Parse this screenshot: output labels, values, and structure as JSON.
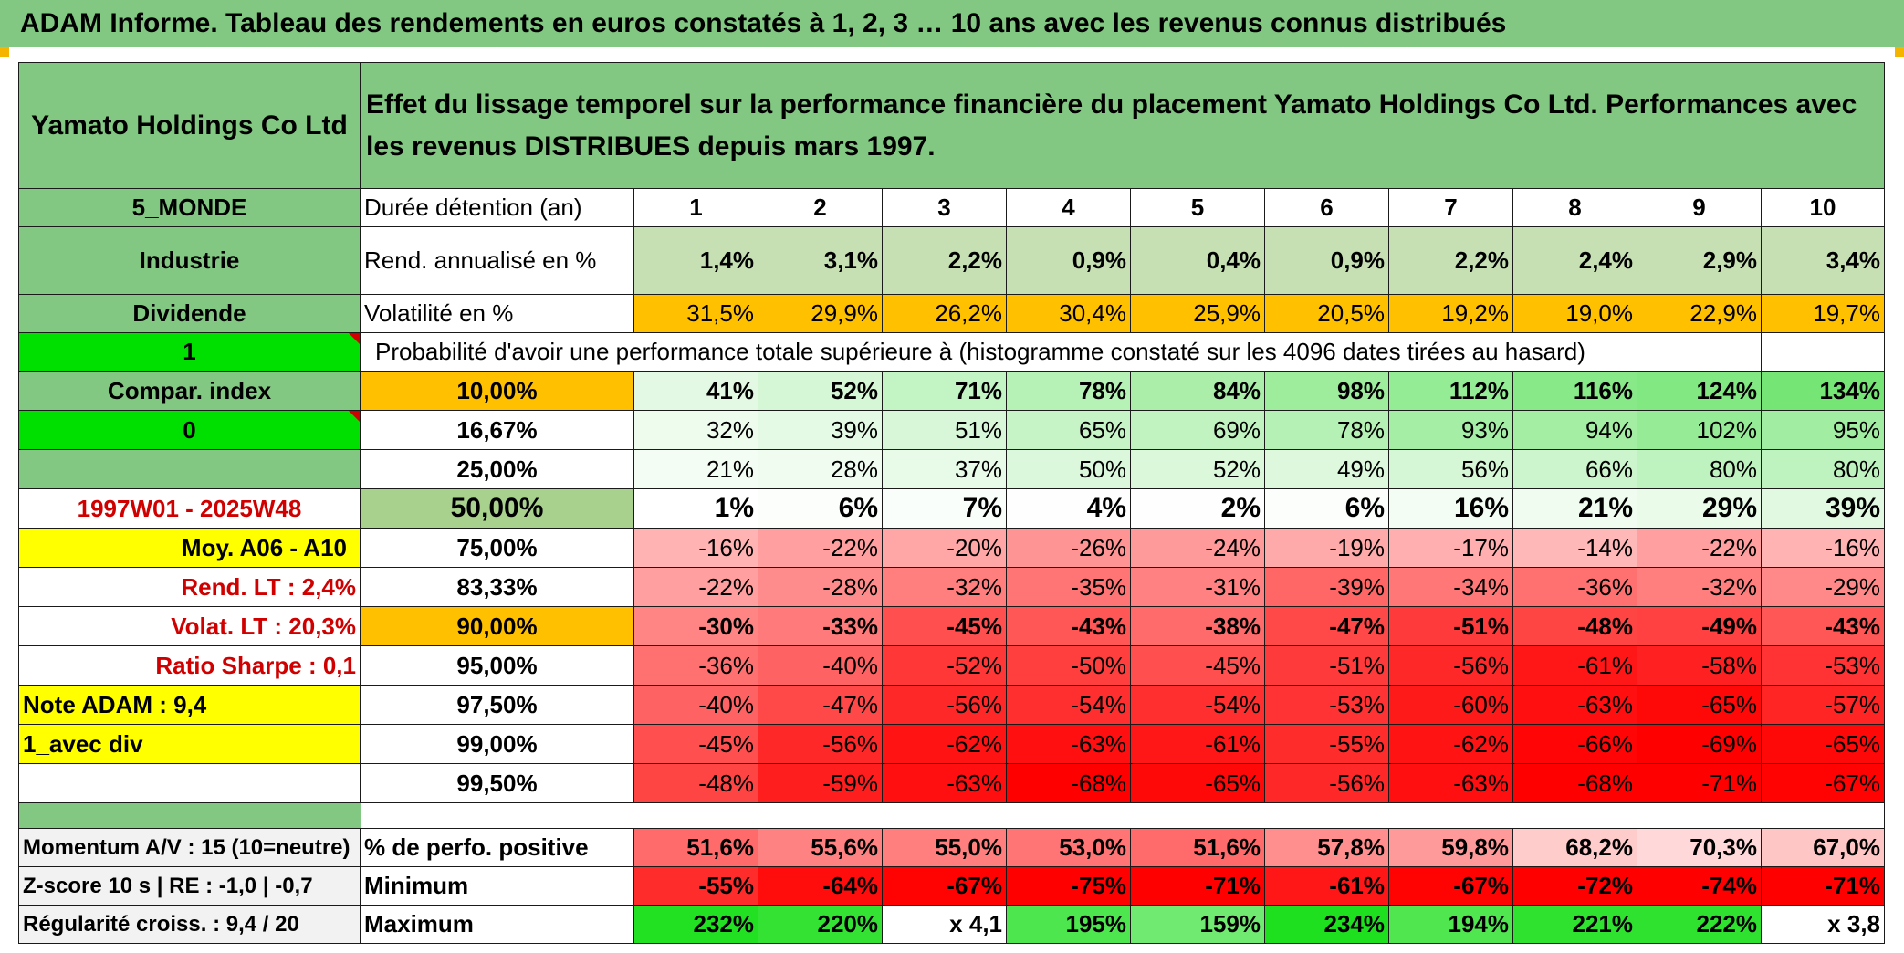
{
  "banner": "ADAM Informe. Tableau des rendements en euros constatés à 1, 2, 3 … 10 ans avec les revenus connus distribués",
  "company": "Yamato Holdings Co Ltd",
  "header_text": "Effet du lissage temporel sur la performance financière du placement Yamato Holdings Co Ltd. Performances avec les revenus DISTRIBUES depuis mars 1997.",
  "sidebar": {
    "zone": "5_MONDE",
    "sector": "Industrie",
    "dividend": "Dividende",
    "input1": "1",
    "compar": "Compar. index",
    "input0": "0",
    "period": "1997W01 - 2025W48",
    "moy": "Moy. A06 - A10",
    "rend_lt": "Rend. LT :   2,4%",
    "volat_lt": "Volat. LT :   20,3%",
    "sharpe": "Ratio Sharpe :    0,1",
    "note": "Note ADAM : 9,4",
    "avec_div": "1_avec div",
    "momentum": "Momentum A/V : 15 (10=neutre)",
    "zscore": "Z-score 10 s | RE : -1,0 | -0,7",
    "regularite": "Régularité croiss. : 9,4 / 20"
  },
  "labels": {
    "duree": "Durée détention (an)",
    "rend": "Rend. annualisé en %",
    "volat": "Volatilité en %",
    "proba": "Probabilité d'avoir une performance totale supérieure à (histogramme constaté sur les 4096 dates tirées au hasard)",
    "pos": "% de perfo. positive",
    "min": "Minimum",
    "max": "Maximum"
  },
  "years": [
    "1",
    "2",
    "3",
    "4",
    "5",
    "6",
    "7",
    "8",
    "9",
    "10"
  ],
  "rend": [
    "1,4%",
    "3,1%",
    "2,2%",
    "0,9%",
    "0,4%",
    "0,9%",
    "2,2%",
    "2,4%",
    "2,9%",
    "3,4%"
  ],
  "volat": [
    "31,5%",
    "29,9%",
    "26,2%",
    "30,4%",
    "25,9%",
    "20,5%",
    "19,2%",
    "19,0%",
    "22,9%",
    "19,7%"
  ],
  "volat_colors": [
    "#ffc000",
    "#ffc000",
    "#ffc000",
    "#ffc000",
    "#ffc000",
    "#ffc000",
    "#ffc000",
    "#ffc000",
    "#ffc000",
    "#ffc000"
  ],
  "prob_rows": [
    {
      "pct": "10,00%",
      "vals": [
        "41%",
        "52%",
        "71%",
        "78%",
        "84%",
        "98%",
        "112%",
        "116%",
        "124%",
        "134%"
      ],
      "colors": [
        "#e3f9e3",
        "#d5f7d5",
        "#c3f4c3",
        "#b6f1b6",
        "#aaeeaa",
        "#9ded9d",
        "#94ec94",
        "#88e988",
        "#82e882",
        "#75e675"
      ]
    },
    {
      "pct": "16,67%",
      "vals": [
        "32%",
        "39%",
        "51%",
        "65%",
        "69%",
        "78%",
        "93%",
        "94%",
        "102%",
        "95%"
      ],
      "colors": [
        "#eefcee",
        "#e5fae5",
        "#d8f7d8",
        "#c7f4c7",
        "#c0f3c0",
        "#b5f0b5",
        "#a5ee a5",
        "#a3ee a3",
        "#96ec96",
        "#a1ed a1"
      ]
    },
    {
      "pct": "25,00%",
      "vals": [
        "21%",
        "28%",
        "37%",
        "50%",
        "52%",
        "49%",
        "56%",
        "66%",
        "80%",
        "80%"
      ],
      "colors": [
        "#f3fdf3",
        "#effcef",
        "#e8fae8",
        "#dcf8dc",
        "#dbf8db",
        "#ddf8dd",
        "#d6f7d6",
        "#cdf5cd",
        "#bef2be",
        "#bef2be"
      ]
    },
    {
      "pct": "50,00%",
      "vals": [
        "1%",
        "6%",
        "7%",
        "4%",
        "2%",
        "6%",
        "16%",
        "21%",
        "29%",
        "39%"
      ],
      "colors": [
        "#ffffff",
        "#fbfefb",
        "#fafefa",
        "#fdfefd",
        "#fefefe",
        "#fbfefb",
        "#f4fdf4",
        "#f0fcf0",
        "#eafbea",
        "#e1f9e1"
      ]
    },
    {
      "pct": "75,00%",
      "vals": [
        "-16%",
        "-22%",
        "-20%",
        "-26%",
        "-24%",
        "-19%",
        "-17%",
        "-14%",
        "-22%",
        "-16%"
      ],
      "colors": [
        "#ffb3b3",
        "#ff9f9f",
        "#ffa6a6",
        "#ff9494",
        "#ff9a9a",
        "#ffaaaa",
        "#ffafaf",
        "#ffb8b8",
        "#ff9f9f",
        "#ffb3b3"
      ]
    },
    {
      "pct": "83,33%",
      "vals": [
        "-22%",
        "-28%",
        "-32%",
        "-35%",
        "-31%",
        "-39%",
        "-34%",
        "-36%",
        "-32%",
        "-29%"
      ],
      "colors": [
        "#ff9f9f",
        "#ff8c8c",
        "#ff7e7e",
        "#ff7474",
        "#ff8181",
        "#ff6666",
        "#ff7777",
        "#ff7070",
        "#ff7e7e",
        "#ff8888"
      ]
    },
    {
      "pct": "90,00%",
      "vals": [
        "-30%",
        "-33%",
        "-45%",
        "-43%",
        "-38%",
        "-47%",
        "-51%",
        "-48%",
        "-49%",
        "-43%"
      ],
      "colors": [
        "#ff8585",
        "#ff7a7a",
        "#ff4f4f",
        "#ff5656",
        "#ff6a6a",
        "#ff4848",
        "#ff3a3a",
        "#ff4444",
        "#ff4141",
        "#ff5656"
      ]
    },
    {
      "pct": "95,00%",
      "vals": [
        "-36%",
        "-40%",
        "-52%",
        "-50%",
        "-45%",
        "-51%",
        "-56%",
        "-61%",
        "-58%",
        "-53%"
      ],
      "colors": [
        "#ff7070",
        "#ff6262",
        "#ff3737",
        "#ff3e3e",
        "#ff4f4f",
        "#ff3a3a",
        "#ff2828",
        "#ff1616",
        "#ff2121",
        "#ff3333"
      ]
    },
    {
      "pct": "97,50%",
      "vals": [
        "-40%",
        "-47%",
        "-56%",
        "-54%",
        "-54%",
        "-53%",
        "-60%",
        "-63%",
        "-65%",
        "-57%"
      ],
      "colors": [
        "#ff6262",
        "#ff4848",
        "#ff2828",
        "#ff2f2f",
        "#ff2f2f",
        "#ff3333",
        "#ff1a1a",
        "#ff0f0f",
        "#ff0808",
        "#ff2525"
      ]
    },
    {
      "pct": "99,00%",
      "vals": [
        "-45%",
        "-56%",
        "-62%",
        "-63%",
        "-61%",
        "-55%",
        "-62%",
        "-66%",
        "-69%",
        "-65%"
      ],
      "colors": [
        "#ff4f4f",
        "#ff2828",
        "#ff1313",
        "#ff0f0f",
        "#ff1616",
        "#ff2c2c",
        "#ff1313",
        "#ff0505",
        "#ff0000",
        "#ff0808"
      ]
    },
    {
      "pct": "99,50%",
      "vals": [
        "-48%",
        "-59%",
        "-63%",
        "-68%",
        "-65%",
        "-56%",
        "-63%",
        "-68%",
        "-71%",
        "-67%"
      ],
      "colors": [
        "#ff4444",
        "#ff1e1e",
        "#ff0f0f",
        "#ff0000",
        "#ff0808",
        "#ff2828",
        "#ff0f0f",
        "#ff0000",
        "#ff0000",
        "#ff0202"
      ]
    }
  ],
  "pos": [
    "51,6%",
    "55,6%",
    "55,0%",
    "53,0%",
    "51,6%",
    "57,8%",
    "59,8%",
    "68,2%",
    "70,3%",
    "67,0%"
  ],
  "pos_colors": [
    "#ff6b6b",
    "#ff8282",
    "#ff7f7f",
    "#ff7474",
    "#ff6b6b",
    "#ff8e8e",
    "#ff9a9a",
    "#ffcccc",
    "#ffd9d9",
    "#ffc6c6"
  ],
  "min": [
    "-55%",
    "-64%",
    "-67%",
    "-75%",
    "-71%",
    "-61%",
    "-67%",
    "-72%",
    "-74%",
    "-71%"
  ],
  "min_colors": [
    "#ff2c2c",
    "#ff0c0c",
    "#ff0202",
    "#ff0000",
    "#ff0000",
    "#ff1616",
    "#ff0202",
    "#ff0000",
    "#ff0000",
    "#ff0000"
  ],
  "max": [
    "232%",
    "220%",
    "x 4,1",
    "195%",
    "159%",
    "234%",
    "194%",
    "221%",
    "222%",
    "x 3,8"
  ],
  "max_colors": [
    "#22e022",
    "#33e233",
    "#ffffff",
    "#4ee64e",
    "#70ea70",
    "#1fe01f",
    "#50e650",
    "#30e230",
    "#2fe22f",
    "#ffffff"
  ]
}
